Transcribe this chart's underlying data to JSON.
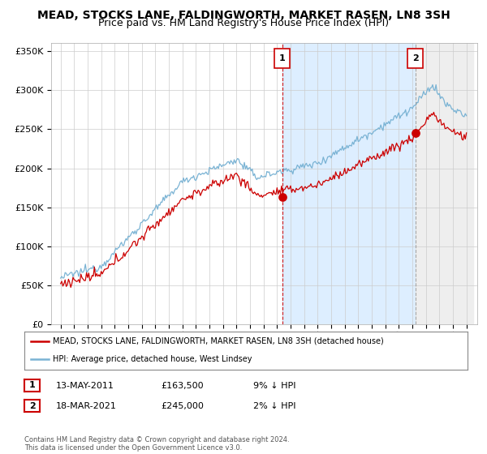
{
  "title": "MEAD, STOCKS LANE, FALDINGWORTH, MARKET RASEN, LN8 3SH",
  "subtitle": "Price paid vs. HM Land Registry's House Price Index (HPI)",
  "ylim": [
    0,
    360000
  ],
  "yticks": [
    0,
    50000,
    100000,
    150000,
    200000,
    250000,
    300000,
    350000
  ],
  "ytick_labels": [
    "£0",
    "£50K",
    "£100K",
    "£150K",
    "£200K",
    "£250K",
    "£300K",
    "£350K"
  ],
  "sale1_x": 2011.37,
  "sale1_price": 163500,
  "sale2_x": 2021.21,
  "sale2_price": 245000,
  "hpi_color": "#7ab3d4",
  "price_color": "#cc0000",
  "vline1_color": "#cc0000",
  "vline2_color": "#888888",
  "shade1_color": "#ddeeff",
  "shade2_color": "#eeeeee",
  "background_color": "#ffffff",
  "plot_bg_color": "#ffffff",
  "legend1_label": "MEAD, STOCKS LANE, FALDINGWORTH, MARKET RASEN, LN8 3SH (detached house)",
  "legend2_label": "HPI: Average price, detached house, West Lindsey",
  "table_row1": [
    "1",
    "13-MAY-2011",
    "£163,500",
    "9% ↓ HPI"
  ],
  "table_row2": [
    "2",
    "18-MAR-2021",
    "£245,000",
    "2% ↓ HPI"
  ],
  "footer": "Contains HM Land Registry data © Crown copyright and database right 2024.\nThis data is licensed under the Open Government Licence v3.0.",
  "title_fontsize": 10,
  "subtitle_fontsize": 9
}
